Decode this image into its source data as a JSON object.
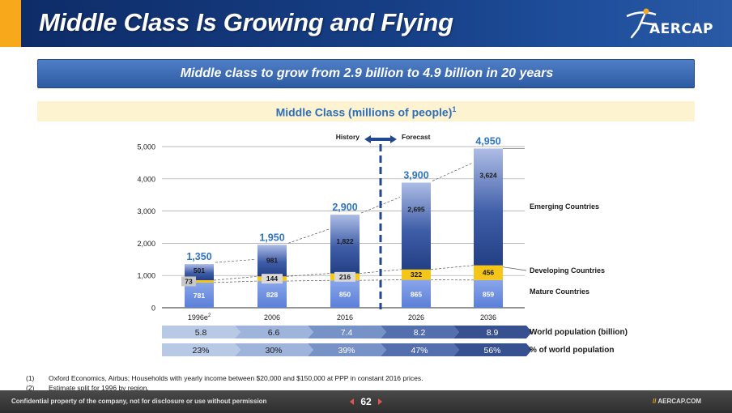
{
  "header": {
    "title": "Middle Class Is Growing and Flying",
    "logo_text": "AERCAP"
  },
  "banner": {
    "text": "Middle class to grow from 2.9 billion to 4.9 billion in 20 years"
  },
  "subhead": {
    "text": "Middle Class (millions of people)",
    "superscript": "1"
  },
  "chart_data": {
    "type": "bar",
    "stacked": true,
    "title": "Middle Class (millions of people)",
    "categories": [
      "1996e",
      "2006",
      "2016",
      "2026",
      "2036"
    ],
    "category_superscripts": [
      "2",
      "",
      "",
      "",
      ""
    ],
    "series": [
      {
        "name": "Mature Countries",
        "values": [
          781,
          828,
          850,
          865,
          859
        ]
      },
      {
        "name": "Developing Countries",
        "values": [
          73,
          144,
          216,
          322,
          456
        ]
      },
      {
        "name": "Emerging Countries",
        "values": [
          501,
          981,
          1822,
          2695,
          3624
        ]
      }
    ],
    "totals": [
      1350,
      1950,
      2900,
      3900,
      4950
    ],
    "total_labels": [
      "1,350",
      "1,950",
      "2,900",
      "3,900",
      "4,950"
    ],
    "series_value_labels": [
      [
        "781",
        "828",
        "850",
        "865",
        "859"
      ],
      [
        "73",
        "144",
        "216",
        "322",
        "456"
      ],
      [
        "501",
        "981",
        "1,822",
        "2,695",
        "3,624"
      ]
    ],
    "ylim": [
      0,
      5000
    ],
    "yticks": [
      0,
      1000,
      2000,
      3000,
      4000,
      5000
    ],
    "ytick_labels": [
      "0",
      "1,000",
      "2,000",
      "3,000",
      "4,000",
      "5,000"
    ],
    "grid": true,
    "legend": "right",
    "divider": {
      "after_category": "2016",
      "left_label": "History",
      "right_label": "Forecast"
    },
    "colors": {
      "mature": "#5b7fd8",
      "developing": "#f5c518",
      "emerging": "#233f85",
      "total_label": "#2e75c5",
      "divider": "#23488f"
    }
  },
  "world_population": {
    "label": "World population (billion)",
    "values": [
      "5.8",
      "6.6",
      "7.4",
      "8.2",
      "8.9"
    ]
  },
  "share_of_world": {
    "label": "% of world population",
    "values": [
      "23%",
      "30%",
      "39%",
      "47%",
      "56%"
    ]
  },
  "footnotes": [
    {
      "num": "(1)",
      "text": "Oxford Economics, Airbus; Households with yearly income between $20,000 and $150,000 at PPP in constant 2016 prices."
    },
    {
      "num": "(2)",
      "text": "Estimate split for 1996 by region."
    }
  ],
  "footer": {
    "confidential": "Confidential property of the company, not for disclosure or use without permission",
    "page": "62",
    "website_slash": "//",
    "website": "AERCAP.COM"
  }
}
